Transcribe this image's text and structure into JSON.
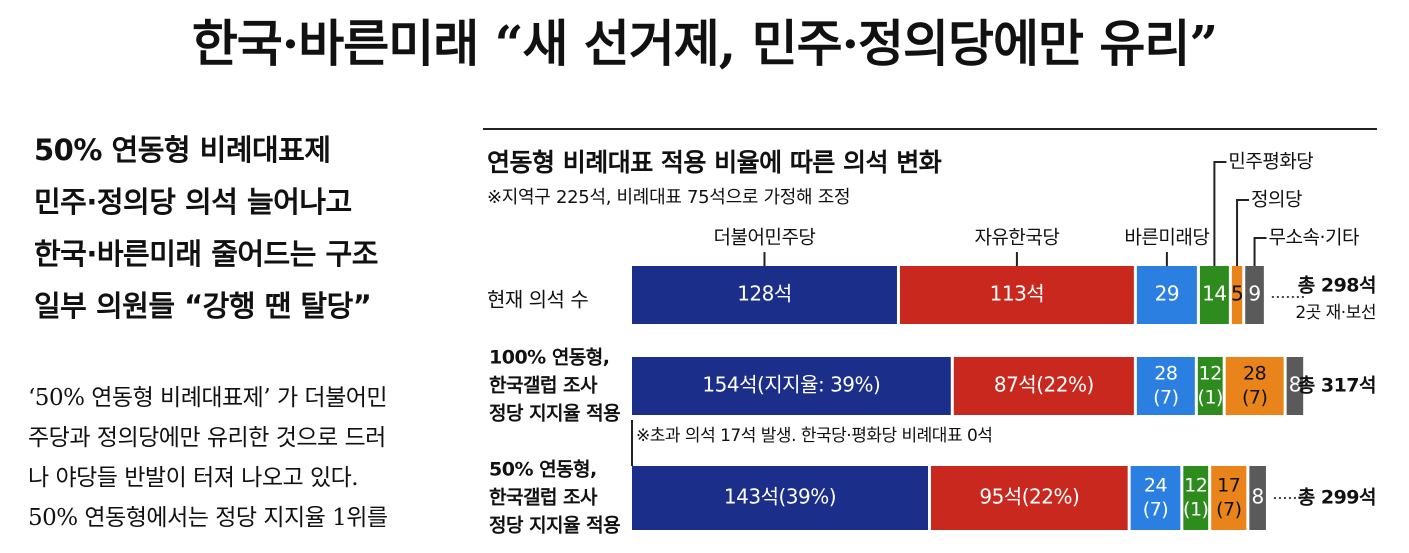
{
  "article": {
    "headline": "한국·바른미래 “새 선거제, 민주·정의당에만 유리”",
    "subheads": [
      "50% 연동형 비례대표제",
      "민주·정의당 의석 늘어나고",
      "한국·바른미래 줄어드는 구조",
      "일부 의원들 “강행 땐 탈당”"
    ],
    "body_lines": [
      "‘50% 연동형 비례대표제’ 가 더불어민",
      "주당과 정의당에만 유리한 것으로 드러",
      "나 야당들 반발이 터져 나오고 있다.",
      "50% 연동형에서는 정당 지지율 1위를"
    ]
  },
  "colors": {
    "minjoo": "#1a2e8a",
    "jayu": "#c8281e",
    "bareun": "#2a7fe0",
    "pyeonghwa": "#2e8b1e",
    "jeongui": "#e8841a",
    "etc": "#5a5a5a"
  },
  "chart_data": {
    "type": "bar",
    "orientation": "horizontal",
    "stacked": true,
    "title": "연동형 비례대표 적용 비율에 따른 의석 변화",
    "subtitle": "※지역구 225석, 비례대표 75석으로 가정해 조정",
    "legend": [
      "더불어민주당",
      "자유한국당",
      "바른미래당",
      "민주평화당",
      "정의당",
      "무소속·기타"
    ],
    "categories": [
      [
        "현재 의석 수"
      ],
      [
        "100% 연동형,",
        "한국갤럽 조사",
        "정당 지지율 적용"
      ],
      [
        "50% 연동형,",
        "한국갤럽 조사",
        "정당 지지율 적용"
      ]
    ],
    "series": [
      {
        "name": "더불어민주당",
        "values": [
          128,
          154,
          143
        ],
        "labels": [
          [
            "128석"
          ],
          [
            "154석(지지율: 39%)"
          ],
          [
            "143석(39%)"
          ]
        ]
      },
      {
        "name": "자유한국당",
        "values": [
          113,
          87,
          95
        ],
        "labels": [
          [
            "113석"
          ],
          [
            "87석(22%)"
          ],
          [
            "95석(22%)"
          ]
        ]
      },
      {
        "name": "바른미래당",
        "values": [
          29,
          28,
          24
        ],
        "labels": [
          [
            "29"
          ],
          [
            "28",
            "(7)"
          ],
          [
            "24",
            "(7)"
          ]
        ]
      },
      {
        "name": "민주평화당",
        "values": [
          14,
          12,
          12
        ],
        "labels": [
          [
            "14"
          ],
          [
            "12",
            "(1)"
          ],
          [
            "12",
            "(1)"
          ]
        ]
      },
      {
        "name": "정의당",
        "values": [
          5,
          28,
          17
        ],
        "labels": [
          [
            "5"
          ],
          [
            "28",
            "(7)"
          ],
          [
            "17",
            "(7)"
          ]
        ]
      },
      {
        "name": "무소속·기타",
        "values": [
          9,
          8,
          8
        ],
        "labels": [
          [
            "9"
          ],
          [
            "8"
          ],
          [
            "8"
          ]
        ]
      }
    ],
    "totals": [
      "총 298석",
      "총 317석",
      "총 299석"
    ],
    "total_notes": [
      "2곳 재·보선",
      "",
      ""
    ],
    "annotation": "※초과 의석 17석 발생. 한국당·평화당 비례대표 0석"
  }
}
